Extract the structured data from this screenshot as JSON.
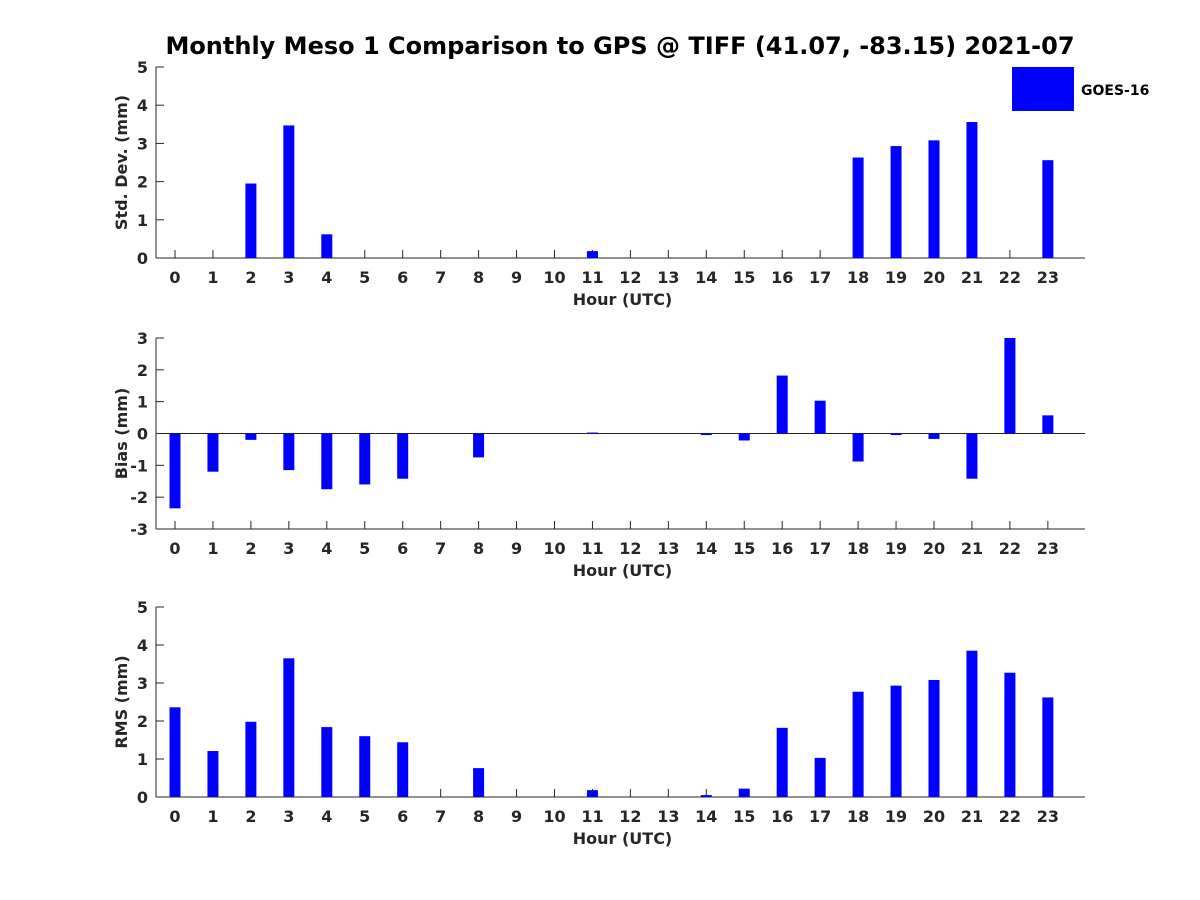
{
  "chart_data": {
    "title": "Monthly Meso 1 Comparison to GPS @ TIFF (41.07, -83.15) 2021-07",
    "type": "bar",
    "series_name": "GOES-16",
    "color": "#0000ff",
    "categories": [
      "0",
      "1",
      "2",
      "3",
      "4",
      "5",
      "6",
      "7",
      "8",
      "9",
      "10",
      "11",
      "12",
      "13",
      "14",
      "15",
      "16",
      "17",
      "18",
      "19",
      "20",
      "21",
      "22",
      "23"
    ],
    "subplots": [
      {
        "ylabel": "Std. Dev. (mm)",
        "xlabel": "Hour (UTC)",
        "ylim": [
          0,
          5
        ],
        "yticks": [
          "0",
          "1",
          "2",
          "3",
          "4",
          "5"
        ],
        "values": [
          0,
          0,
          1.95,
          3.47,
          0.62,
          0,
          0,
          0,
          0,
          0,
          0,
          0.18,
          0,
          0,
          0,
          0,
          0,
          0,
          2.63,
          2.93,
          3.08,
          3.56,
          0,
          2.56
        ]
      },
      {
        "ylabel": "Bias (mm)",
        "xlabel": "Hour (UTC)",
        "ylim": [
          -3,
          3
        ],
        "yticks": [
          "-3",
          "-2",
          "-1",
          "0",
          "1",
          "2",
          "3"
        ],
        "values": [
          -2.35,
          -1.2,
          -0.2,
          -1.15,
          -1.75,
          -1.6,
          -1.42,
          0,
          -0.75,
          0,
          0,
          0.03,
          0,
          0,
          -0.05,
          -0.22,
          1.82,
          1.03,
          -0.88,
          -0.05,
          -0.17,
          -1.42,
          3.0,
          0.57
        ]
      },
      {
        "ylabel": "RMS (mm)",
        "xlabel": "Hour (UTC)",
        "ylim": [
          0,
          5
        ],
        "yticks": [
          "0",
          "1",
          "2",
          "3",
          "4",
          "5"
        ],
        "values": [
          2.36,
          1.21,
          1.98,
          3.65,
          1.84,
          1.6,
          1.44,
          0,
          0.76,
          0,
          0,
          0.18,
          0,
          0,
          0.05,
          0.22,
          1.82,
          1.03,
          2.77,
          2.93,
          3.08,
          3.85,
          3.27,
          2.62
        ]
      }
    ]
  }
}
